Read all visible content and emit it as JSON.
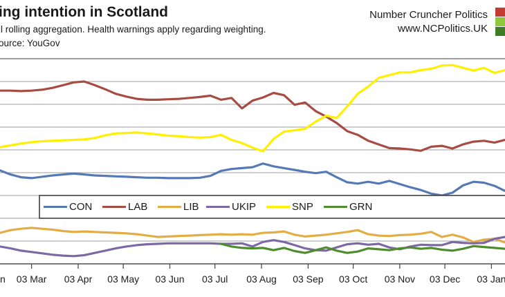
{
  "header": {
    "title": "ing intention in Scotland",
    "subtitle": "ll rolling aggregation. Health warnings apply regarding weighting.",
    "source": "ource: YouGov",
    "brand_line1": "Number Cruncher Politics",
    "brand_line2": "www.NCPolitics.UK",
    "logo_colors": [
      "#c23a31",
      "#8fc83d",
      "#3e7c26"
    ]
  },
  "chart_data": {
    "type": "line",
    "title": "ing intention in Scotland",
    "xlabel": "",
    "ylabel": "",
    "unit": "percent",
    "ylim": [
      0,
      45
    ],
    "gridline_interval": 5,
    "grid": true,
    "legend_position": "horizontal band inside plot",
    "axis_start_date": "2014-02-10",
    "axis_end_date": "2015-01-12",
    "x_ticks": [
      {
        "label": "n",
        "day": null
      },
      {
        "label": "03 Mar",
        "day": 21
      },
      {
        "label": "03 Apr",
        "day": 52
      },
      {
        "label": "03 May",
        "day": 82
      },
      {
        "label": "03 Jun",
        "day": 113
      },
      {
        "label": "03 Jul",
        "day": 143
      },
      {
        "label": "03 Aug",
        "day": 174
      },
      {
        "label": "03 Sep",
        "day": 205
      },
      {
        "label": "03 Oct",
        "day": 235
      },
      {
        "label": "03 Nov",
        "day": 266
      },
      {
        "label": "03 Dec",
        "day": 296
      },
      {
        "label": "03 Jan",
        "day": 327
      }
    ],
    "x_dates": [
      "2014-02-10",
      "2014-02-17",
      "2014-02-24",
      "2014-03-03",
      "2014-03-10",
      "2014-03-17",
      "2014-03-24",
      "2014-03-31",
      "2014-04-07",
      "2014-04-14",
      "2014-04-21",
      "2014-04-28",
      "2014-05-05",
      "2014-05-12",
      "2014-05-19",
      "2014-05-26",
      "2014-06-02",
      "2014-06-09",
      "2014-06-16",
      "2014-06-23",
      "2014-06-30",
      "2014-07-07",
      "2014-07-14",
      "2014-07-21",
      "2014-07-28",
      "2014-08-04",
      "2014-08-11",
      "2014-08-18",
      "2014-08-25",
      "2014-09-01",
      "2014-09-08",
      "2014-09-15",
      "2014-09-22",
      "2014-09-29",
      "2014-10-06",
      "2014-10-13",
      "2014-10-20",
      "2014-10-27",
      "2014-11-03",
      "2014-11-10",
      "2014-11-17",
      "2014-11-24",
      "2014-12-01",
      "2014-12-08",
      "2014-12-15",
      "2014-12-22",
      "2014-12-29",
      "2015-01-05",
      "2015-01-12"
    ],
    "series": [
      {
        "name": "CON",
        "color": "#5579b4",
        "values": [
          20.5,
          19.6,
          19.0,
          18.8,
          19.1,
          19.4,
          19.6,
          19.8,
          19.6,
          19.4,
          19.3,
          19.2,
          19.1,
          19.0,
          18.9,
          18.9,
          18.8,
          18.8,
          18.8,
          18.9,
          19.3,
          20.4,
          20.8,
          21.0,
          21.2,
          22.0,
          21.4,
          21.0,
          20.6,
          20.2,
          19.9,
          20.2,
          19.0,
          17.9,
          17.6,
          18.0,
          17.6,
          18.2,
          17.5,
          16.8,
          16.2,
          15.4,
          15.0,
          15.6,
          17.2,
          18.0,
          17.8,
          17.1,
          16.0
        ]
      },
      {
        "name": "LAB",
        "color": "#a84b42",
        "values": [
          38.0,
          38.0,
          37.9,
          38.0,
          38.2,
          38.6,
          39.2,
          39.8,
          40.0,
          39.2,
          38.3,
          37.3,
          36.7,
          36.2,
          36.0,
          36.0,
          36.1,
          36.2,
          36.4,
          36.6,
          36.9,
          36.0,
          36.4,
          34.1,
          35.8,
          36.5,
          37.5,
          37.0,
          34.9,
          35.4,
          33.5,
          32.3,
          30.9,
          29.1,
          28.3,
          27.0,
          26.2,
          25.4,
          25.3,
          25.1,
          24.8,
          25.7,
          25.9,
          25.3,
          26.2,
          26.8,
          27.0,
          26.6,
          27.2
        ]
      },
      {
        "name": "LIB",
        "color": "#e3ad45",
        "values": [
          6.8,
          7.4,
          7.7,
          7.9,
          7.7,
          7.5,
          7.2,
          7.0,
          7.1,
          7.0,
          6.9,
          6.8,
          6.7,
          6.5,
          6.2,
          5.9,
          6.0,
          6.1,
          6.2,
          6.3,
          6.4,
          6.5,
          6.4,
          6.5,
          6.4,
          6.8,
          6.9,
          7.1,
          6.4,
          6.0,
          6.2,
          6.4,
          6.7,
          7.0,
          7.4,
          6.5,
          6.2,
          6.1,
          6.3,
          6.4,
          6.6,
          7.0,
          5.9,
          6.4,
          5.8,
          4.8,
          5.3,
          5.5,
          4.7
        ]
      },
      {
        "name": "UKIP",
        "color": "#7d68a6",
        "values": [
          3.8,
          3.4,
          2.9,
          2.6,
          2.3,
          2.0,
          1.8,
          1.7,
          1.9,
          2.4,
          2.9,
          3.4,
          3.8,
          4.1,
          4.3,
          4.4,
          4.5,
          4.5,
          4.5,
          4.5,
          4.5,
          4.4,
          4.4,
          4.5,
          3.8,
          4.8,
          5.2,
          4.8,
          4.1,
          3.4,
          3.0,
          2.9,
          3.6,
          4.3,
          4.5,
          4.2,
          4.4,
          3.6,
          3.2,
          3.8,
          4.2,
          4.1,
          4.1,
          4.8,
          4.6,
          4.5,
          4.6,
          5.5,
          5.9
        ]
      },
      {
        "name": "SNP",
        "color": "#fff000",
        "values": [
          25.6,
          26.0,
          26.4,
          26.7,
          26.9,
          27.0,
          27.1,
          27.2,
          27.3,
          27.6,
          28.2,
          28.6,
          28.7,
          28.8,
          28.6,
          28.4,
          28.1,
          28.0,
          27.8,
          27.7,
          27.8,
          28.3,
          27.2,
          26.5,
          25.5,
          24.7,
          27.4,
          29.0,
          29.3,
          29.6,
          31.2,
          32.5,
          32.0,
          34.5,
          37.3,
          38.9,
          40.8,
          41.4,
          42.0,
          42.0,
          42.5,
          42.8,
          43.5,
          43.6,
          43.0,
          42.4,
          43.0,
          41.9,
          42.5
        ]
      },
      {
        "name": "GRN",
        "color": "#4e8c2e",
        "values": [
          null,
          null,
          null,
          null,
          null,
          null,
          null,
          null,
          null,
          null,
          null,
          null,
          null,
          null,
          null,
          null,
          null,
          null,
          null,
          null,
          null,
          4.4,
          3.8,
          3.5,
          3.4,
          3.5,
          3.0,
          3.5,
          2.8,
          2.4,
          3.0,
          3.6,
          2.9,
          2.4,
          2.7,
          3.4,
          3.2,
          3.0,
          3.4,
          3.6,
          3.3,
          3.5,
          3.1,
          2.9,
          3.3,
          3.9,
          3.7,
          3.5,
          3.3
        ]
      }
    ]
  }
}
